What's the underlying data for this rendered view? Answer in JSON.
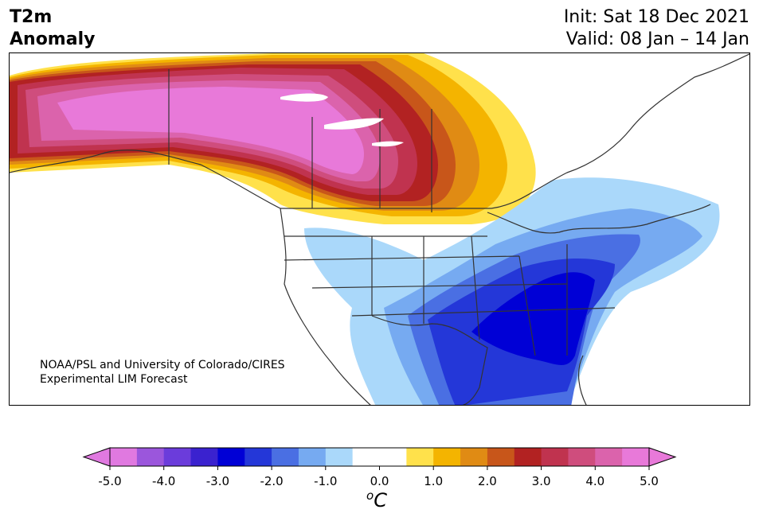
{
  "header": {
    "title_line1": "T2m",
    "title_line2": "Anomaly",
    "init_label": "Init: Sat 18 Dec 2021",
    "valid_label": "Valid: 08 Jan – 14 Jan"
  },
  "map": {
    "credit_line1": "NOAA/PSL and University of Colorado/CIRES",
    "credit_line2": "Experimental LIM Forecast",
    "region": "North America",
    "anomaly_warm_region": "Alaska / western & central Canada",
    "anomaly_cold_region": "Southeastern & eastern United States"
  },
  "colorbar": {
    "tick_labels": [
      "-5.0",
      "-4.0",
      "-3.0",
      "-2.0",
      "-1.0",
      "0.0",
      "1.0",
      "2.0",
      "3.0",
      "4.0",
      "5.0"
    ],
    "unit_base": "C",
    "unit_sup": "o",
    "colors": [
      "#e079e0",
      "#9b56dc",
      "#6b3cdb",
      "#3a22cf",
      "#0000d6",
      "#2437d8",
      "#4a6fe3",
      "#76aaf1",
      "#aad8fa",
      "#ffffff",
      "#ffffff",
      "#ffe14b",
      "#f4b400",
      "#e08b14",
      "#c8561a",
      "#b22222",
      "#c0334f",
      "#cf4d7d",
      "#db63ac",
      "#e879d9"
    ]
  }
}
